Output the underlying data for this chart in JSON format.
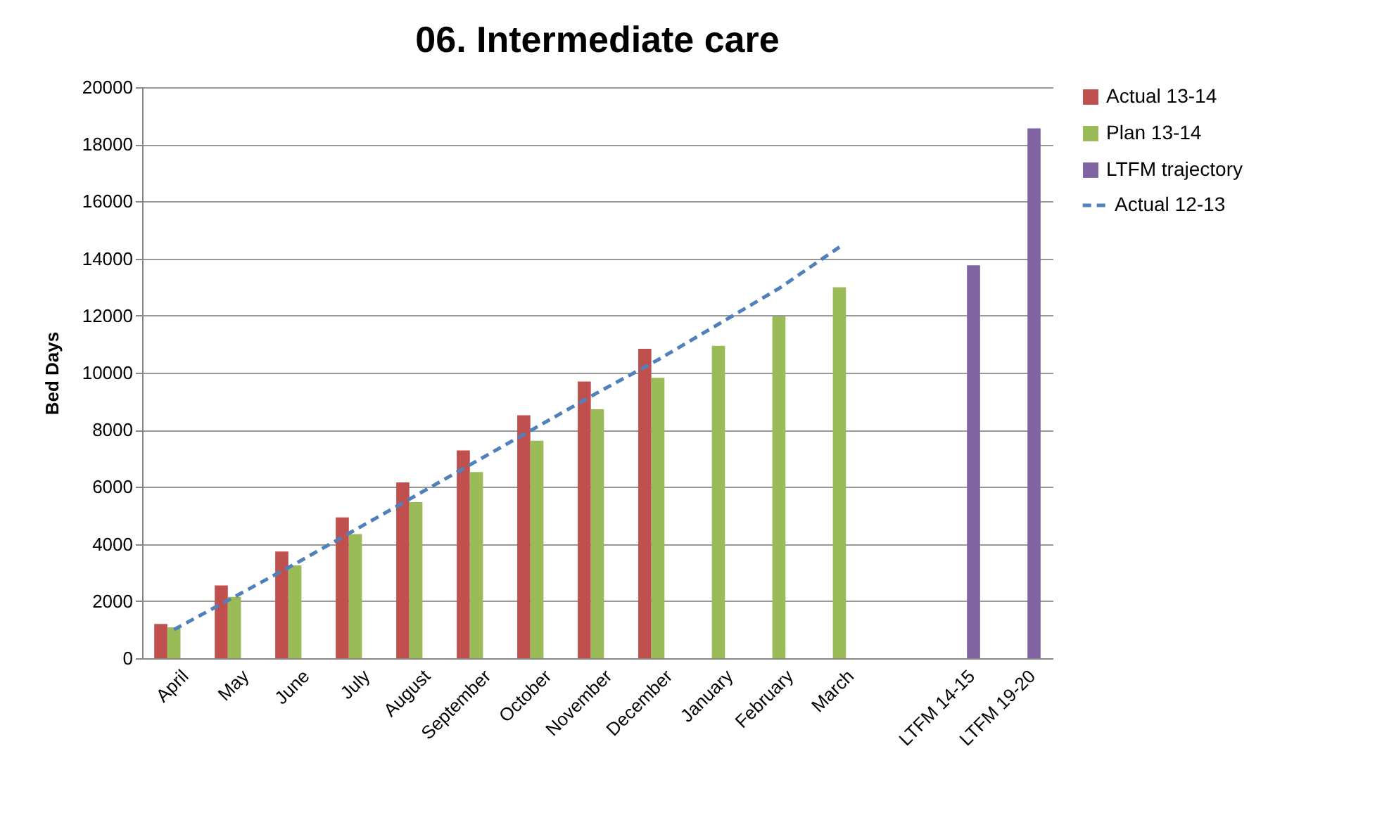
{
  "chart_data": {
    "type": "bar",
    "title": "06. Intermediate care",
    "ylabel": "Bed Days",
    "categories": [
      "April",
      "May",
      "June",
      "July",
      "August",
      "September",
      "October",
      "November",
      "December",
      "January",
      "February",
      "March",
      null,
      "LTFM 14-15",
      "LTFM 19-20"
    ],
    "series": [
      {
        "name": "Actual 13-14",
        "color": "#c0504d",
        "values": [
          1200,
          2550,
          3740,
          4930,
          6160,
          7280,
          8510,
          9690,
          10840,
          null,
          null,
          null,
          null,
          null,
          null
        ]
      },
      {
        "name": "Plan 13-14",
        "color": "#9bbb59",
        "values": [
          1080,
          2150,
          3250,
          4350,
          5470,
          6520,
          7620,
          8720,
          9820,
          10940,
          11970,
          12990,
          null,
          null,
          null
        ]
      },
      {
        "name": "LTFM trajectory",
        "color": "#8064a2",
        "values": [
          null,
          null,
          null,
          null,
          null,
          null,
          null,
          null,
          null,
          null,
          null,
          null,
          null,
          13760,
          18560
        ]
      },
      {
        "name": "Actual 12-13",
        "color": "#4f81bd",
        "type": "line",
        "line_style": "dashed",
        "values": [
          1000,
          2150,
          3300,
          4500,
          5700,
          6900,
          8100,
          9300,
          10450,
          11700,
          12950,
          14400,
          null,
          null,
          null
        ]
      }
    ],
    "ylim": [
      0,
      20000
    ],
    "yticks": [
      0,
      2000,
      4000,
      6000,
      8000,
      10000,
      12000,
      14000,
      16000,
      18000,
      20000
    ],
    "grid": "y",
    "legend": "right"
  }
}
